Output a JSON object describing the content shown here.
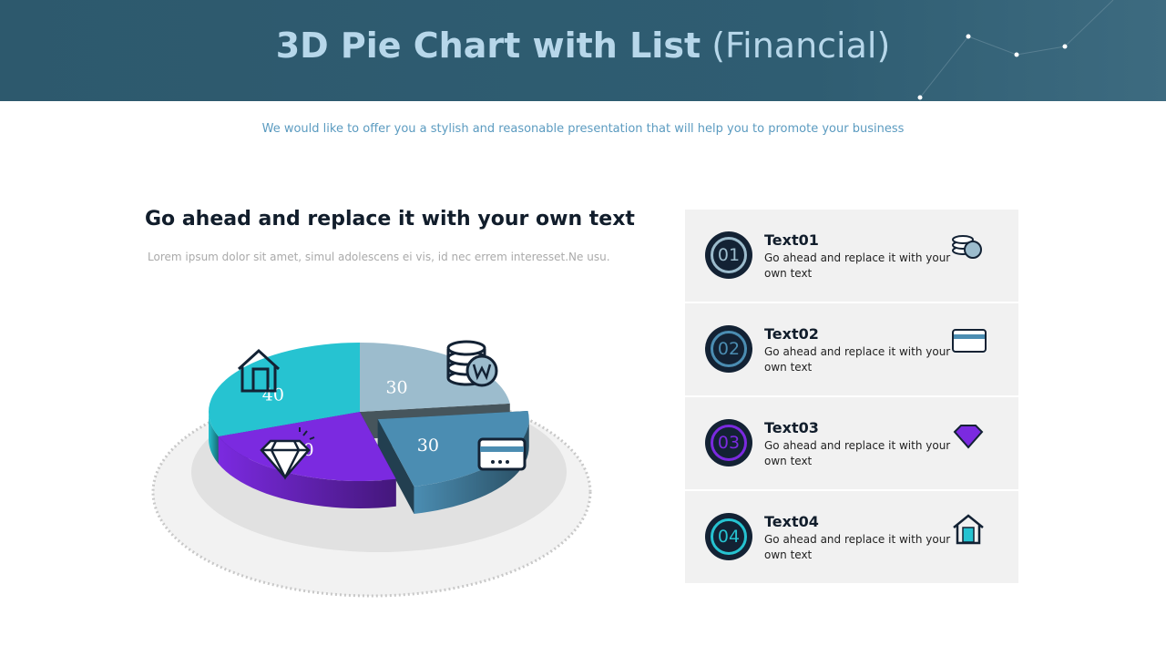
{
  "header": {
    "title_bold": "3D Pie Chart with List",
    "title_light": "(Financial)",
    "subtitle": "We would like to offer you a stylish and reasonable presentation that will help you to promote your business"
  },
  "left": {
    "heading": "Go ahead and replace it with your own text",
    "text": "Lorem ipsum dolor sit amet, simul adolescens ei vis, id nec errem interesset.Ne usu."
  },
  "chart_data": {
    "type": "pie",
    "values": [
      30,
      30,
      30,
      40
    ],
    "colors": [
      "#9cbccd",
      "#4b8db2",
      "#7b2ae0",
      "#26c3d1"
    ]
  },
  "list": [
    {
      "number": "01",
      "title": "Text01",
      "text": "Go ahead and replace it with your own text"
    },
    {
      "number": "02",
      "title": "Text02",
      "text": "Go ahead and replace it with your own text"
    },
    {
      "number": "03",
      "title": "Text03",
      "text": "Go ahead and replace it with your own text"
    },
    {
      "number": "04",
      "title": "Text04",
      "text": "Go ahead and replace it with your own text"
    }
  ]
}
